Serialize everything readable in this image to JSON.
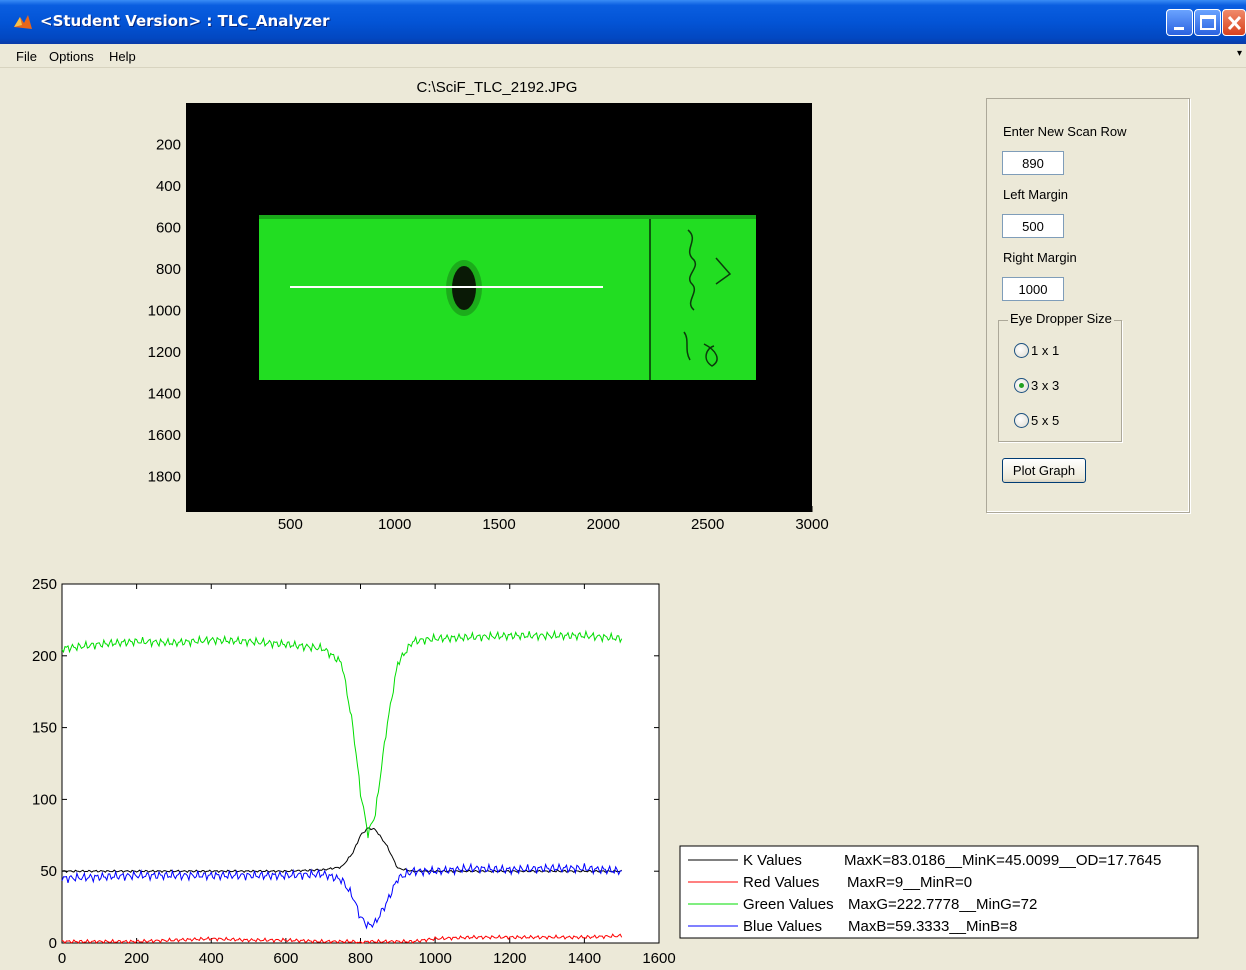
{
  "window": {
    "title": "<Student Version> : TLC_Analyzer",
    "icon": "matlab-icon"
  },
  "menu": {
    "items": [
      "File",
      "Options",
      "Help"
    ]
  },
  "image_axes": {
    "title": "C:\\SciF_TLC_2192.JPG",
    "x_ticks": [
      "500",
      "1000",
      "1500",
      "2000",
      "2500",
      "3000"
    ],
    "y_ticks": [
      "200",
      "400",
      "600",
      "800",
      "1000",
      "1200",
      "1400",
      "1600",
      "1800"
    ],
    "colors": {
      "background": "#000000",
      "plate": "#22dd22",
      "scan_line": "#ffffff",
      "spot": "#0a1a06"
    }
  },
  "controls": {
    "scan_row_label": "Enter New Scan Row",
    "scan_row_value": "890",
    "left_margin_label": "Left Margin",
    "left_margin_value": "500",
    "right_margin_label": "Right Margin",
    "right_margin_value": "1000",
    "eye_dropper_title": "Eye Dropper Size",
    "eye_dropper_options": [
      "1 x 1",
      "3 x 3",
      "5 x 5"
    ],
    "eye_dropper_selected": "3 x 3",
    "plot_button": "Plot Graph"
  },
  "chart_data": {
    "type": "line",
    "x_ticks": [
      "0",
      "200",
      "400",
      "600",
      "800",
      "1000",
      "1200",
      "1400",
      "1600"
    ],
    "y_ticks": [
      "0",
      "50",
      "100",
      "150",
      "200",
      "250"
    ],
    "xlim": [
      0,
      1600
    ],
    "ylim": [
      0,
      250
    ],
    "x": [
      0,
      100,
      200,
      300,
      400,
      500,
      600,
      700,
      750,
      780,
      800,
      820,
      840,
      870,
      900,
      940,
      1000,
      1100,
      1200,
      1300,
      1400,
      1500
    ],
    "series": [
      {
        "name": "K Values",
        "color": "#000000",
        "values": [
          50,
          50,
          50,
          50,
          50,
          50,
          50,
          51,
          53,
          63,
          75,
          80,
          79,
          68,
          52,
          50,
          50,
          50,
          50,
          50,
          50,
          50
        ]
      },
      {
        "name": "Red Values",
        "color": "#ff0000",
        "values": [
          1,
          1,
          1,
          2,
          3,
          2,
          2,
          1,
          1,
          1,
          0,
          1,
          1,
          1,
          1,
          1,
          3,
          4,
          4,
          4,
          4,
          5
        ]
      },
      {
        "name": "Green Values",
        "color": "#00dd00",
        "values": [
          205,
          208,
          210,
          209,
          211,
          210,
          208,
          205,
          195,
          150,
          105,
          76,
          90,
          150,
          195,
          210,
          212,
          213,
          214,
          214,
          214,
          212
        ]
      },
      {
        "name": "Blue Values",
        "color": "#0000ff",
        "values": [
          45,
          46,
          47,
          47,
          47,
          47,
          47,
          48,
          44,
          32,
          18,
          12,
          14,
          28,
          45,
          50,
          50,
          52,
          51,
          52,
          52,
          50
        ]
      }
    ],
    "legend": [
      {
        "label": "K Values",
        "stats": "MaxK=83.0186__MinK=45.0099__OD=17.7645",
        "color": "#000000"
      },
      {
        "label": "Red Values",
        "stats": "MaxR=9__MinR=0",
        "color": "#ff0000"
      },
      {
        "label": "Green Values",
        "stats": "MaxG=222.7778__MinG=72",
        "color": "#00dd00"
      },
      {
        "label": "Blue Values",
        "stats": "MaxB=59.3333__MinB=8",
        "color": "#0000ff"
      }
    ],
    "legend_placement": "bottom-right (outside)",
    "grid": false
  }
}
